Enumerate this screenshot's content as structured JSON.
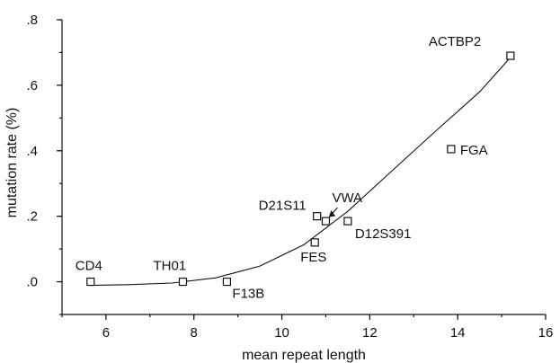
{
  "chart_data": {
    "type": "scatter",
    "title": "",
    "xlabel": "mean repeat length",
    "ylabel": "mutation rate (%)",
    "xlim": [
      5,
      16
    ],
    "ylim": [
      -0.1,
      0.8
    ],
    "x_ticks": [
      6,
      8,
      10,
      12,
      14,
      16
    ],
    "x_tick_labels": [
      "6",
      "8",
      "10",
      "12",
      "14",
      "16"
    ],
    "y_ticks": [
      0,
      0.2,
      0.4,
      0.6,
      0.8
    ],
    "y_tick_labels": [
      ".0",
      ".2",
      ".4",
      ".6",
      ".8"
    ],
    "grid": false,
    "legend": "none",
    "marker": "open-square",
    "points": [
      {
        "label": "CD4",
        "x": 5.65,
        "y": 0.0
      },
      {
        "label": "TH01",
        "x": 7.75,
        "y": 0.0
      },
      {
        "label": "F13B",
        "x": 8.75,
        "y": 0.0
      },
      {
        "label": "FES",
        "x": 10.75,
        "y": 0.12
      },
      {
        "label": "D21S11",
        "x": 10.8,
        "y": 0.2
      },
      {
        "label": "VWA",
        "x": 11.0,
        "y": 0.185
      },
      {
        "label": "D12S391",
        "x": 11.5,
        "y": 0.185
      },
      {
        "label": "FGA",
        "x": 13.85,
        "y": 0.405
      },
      {
        "label": "ACTBP2",
        "x": 15.2,
        "y": 0.69
      }
    ],
    "fit_curve": {
      "type": "polynomial",
      "x_range": [
        5.65,
        15.2
      ],
      "points": [
        [
          5.65,
          -0.011
        ],
        [
          6.5,
          -0.009
        ],
        [
          7.5,
          -0.004
        ],
        [
          8.5,
          0.012
        ],
        [
          9.5,
          0.048
        ],
        [
          10.5,
          0.113
        ],
        [
          11.5,
          0.215
        ],
        [
          12.5,
          0.338
        ],
        [
          13.5,
          0.46
        ],
        [
          14.5,
          0.58
        ],
        [
          15.2,
          0.685
        ]
      ]
    }
  }
}
